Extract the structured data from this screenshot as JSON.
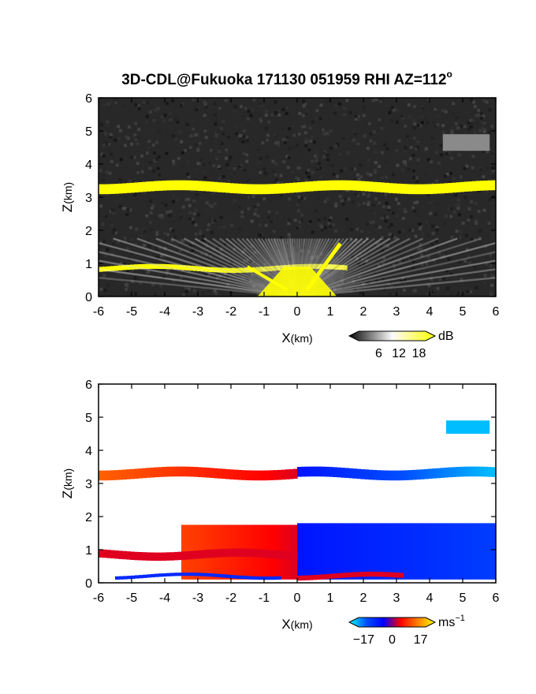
{
  "figure": {
    "title": "3D-CDL@Fukuoka 171130 051959 RHI AZ=112",
    "title_superscript": "o"
  },
  "chart_data": [
    {
      "type": "heatmap",
      "name": "snr",
      "xlabel_main": "X",
      "xlabel_unit": "(km)",
      "ylabel_main": "Z",
      "ylabel_unit": "(km)",
      "xlim": [
        -6,
        6
      ],
      "ylim": [
        0,
        6
      ],
      "xticks": [
        "-6",
        "-5",
        "-4",
        "-3",
        "-2",
        "-1",
        "0",
        "1",
        "2",
        "3",
        "4",
        "5",
        "6"
      ],
      "yticks": [
        "0",
        "1",
        "2",
        "3",
        "4",
        "5",
        "6"
      ],
      "background_color": "#282828",
      "colorbar": {
        "unit": "dB",
        "unit_superscript": "",
        "ticks": [
          "6",
          "12",
          "18"
        ],
        "tick_values": [
          6,
          12,
          18
        ],
        "range": [
          0,
          20
        ],
        "colors": [
          "#050505",
          "#fafafa",
          "#ffff00"
        ]
      },
      "features": [
        {
          "kind": "layer",
          "x": [
            -6,
            6
          ],
          "z_center": 3.3,
          "thickness": 0.3,
          "color": "#ffff00"
        },
        {
          "kind": "layer",
          "x": [
            -6,
            1.5
          ],
          "z_center": 0.85,
          "thickness": 0.15,
          "color": "#ffff00"
        },
        {
          "kind": "fan",
          "origin": [
            0,
            0
          ],
          "x": [
            -6,
            6
          ],
          "z_top": 1.75,
          "color": "#d8d8d8"
        },
        {
          "kind": "patch",
          "x": [
            4.4,
            5.8
          ],
          "z": [
            4.4,
            4.9
          ],
          "color": "#8a8a8a"
        }
      ]
    },
    {
      "type": "heatmap",
      "name": "radial-velocity",
      "xlabel_main": "X",
      "xlabel_unit": "(km)",
      "ylabel_main": "Z",
      "ylabel_unit": "(km)",
      "xlim": [
        -6,
        6
      ],
      "ylim": [
        0,
        6
      ],
      "xticks": [
        "-6",
        "-5",
        "-4",
        "-3",
        "-2",
        "-1",
        "0",
        "1",
        "2",
        "3",
        "4",
        "5",
        "6"
      ],
      "yticks": [
        "0",
        "1",
        "2",
        "3",
        "4",
        "5",
        "6"
      ],
      "background_color": "#ffffff",
      "colorbar": {
        "unit": "ms",
        "unit_superscript": "−1",
        "ticks": [
          "−17",
          "0",
          "17"
        ],
        "tick_values": [
          -17,
          0,
          17
        ],
        "range": [
          -20,
          20
        ],
        "colors": [
          "#00ffff",
          "#0050ff",
          "#0000ff",
          "#ff0000",
          "#ff8000",
          "#ffff00"
        ]
      },
      "features": [
        {
          "kind": "layer",
          "x": [
            -6,
            0
          ],
          "z_center": 3.3,
          "thickness": 0.3,
          "v_from": 10,
          "v_to": 3
        },
        {
          "kind": "layer",
          "x": [
            0,
            6
          ],
          "z_center": 3.3,
          "thickness": 0.3,
          "v_from": -6,
          "v_to": -17
        },
        {
          "kind": "region",
          "x": [
            -3.5,
            0
          ],
          "z": [
            0.1,
            1.75
          ],
          "v_from": 8,
          "v_to": 3
        },
        {
          "kind": "region",
          "x": [
            0,
            6
          ],
          "z": [
            0.1,
            1.8
          ],
          "v_from": -6,
          "v_to": -10
        },
        {
          "kind": "layer",
          "x": [
            -6,
            0
          ],
          "z_center": 0.85,
          "thickness": 0.25,
          "v_from": 3,
          "v_to": 3
        },
        {
          "kind": "layer",
          "x": [
            0,
            3.2
          ],
          "z_center": 0.2,
          "thickness": 0.15,
          "v_from": 3,
          "v_to": 3
        },
        {
          "kind": "layer",
          "x": [
            -5.5,
            -0.5
          ],
          "z_center": 0.2,
          "thickness": 0.1,
          "v_from": -8,
          "v_to": -8
        },
        {
          "kind": "patch",
          "x": [
            4.5,
            5.8
          ],
          "z": [
            4.5,
            4.9
          ],
          "v_from": -17,
          "v_to": -17
        }
      ]
    }
  ]
}
